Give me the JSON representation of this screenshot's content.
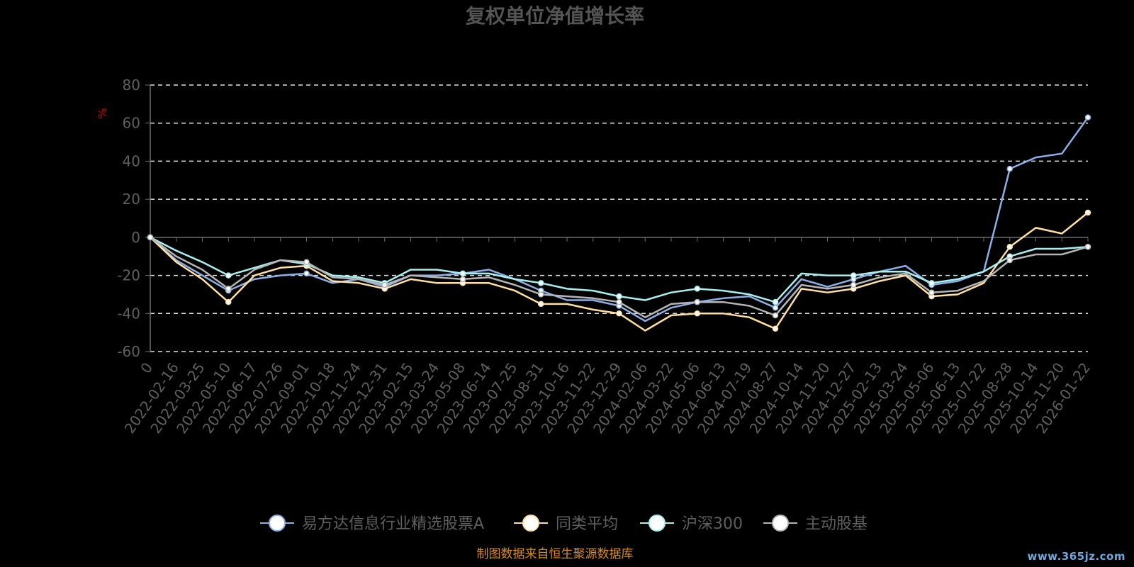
{
  "watermark": "www.365jz.com",
  "chart_data": {
    "type": "line",
    "title": "复权单位净值增长率",
    "ylabel": "%",
    "ylim": [
      -60,
      80
    ],
    "yticks": [
      80,
      60,
      40,
      20,
      0,
      -20,
      -40,
      -60
    ],
    "grid": true,
    "legend_position": "bottom",
    "source_note": "制图数据来自恒生聚源数据库",
    "x": [
      "0",
      "2022-02-16",
      "2022-03-25",
      "2022-05-10",
      "2022-06-17",
      "2022-07-26",
      "2022-09-01",
      "2022-10-18",
      "2022-11-24",
      "2022-12-31",
      "2023-02-15",
      "2023-03-24",
      "2023-05-08",
      "2023-06-14",
      "2023-07-25",
      "2023-08-31",
      "2023-10-16",
      "2023-11-22",
      "2023-12-29",
      "2024-02-06",
      "2024-03-22",
      "2024-05-06",
      "2024-06-13",
      "2024-07-19",
      "2024-08-27",
      "2024-10-14",
      "2024-11-20",
      "2024-12-27",
      "2025-02-13",
      "2025-03-24",
      "2025-05-06",
      "2025-06-13",
      "2025-07-22",
      "2025-08-28",
      "2025-10-14",
      "2025-11-20",
      "2026-01-22"
    ],
    "series": [
      {
        "name": "易方达信息行业精选股票A",
        "color": "#8cb0e6",
        "values": [
          0,
          -12,
          -20,
          -28,
          -22,
          -20,
          -19,
          -24,
          -22,
          -26,
          -20,
          -20,
          -19,
          -17,
          -22,
          -28,
          -33,
          -33,
          -36,
          -44,
          -37,
          -34,
          -32,
          -31,
          -37,
          -22,
          -26,
          -22,
          -18,
          -15,
          -25,
          -23,
          -18,
          36,
          42,
          44,
          63
        ]
      },
      {
        "name": "同类平均",
        "color": "#ffe0a0",
        "values": [
          0,
          -13,
          -22,
          -34,
          -20,
          -16,
          -15,
          -23,
          -24,
          -27,
          -22,
          -24,
          -24,
          -24,
          -28,
          -35,
          -35,
          -38,
          -40,
          -49,
          -41,
          -40,
          -40,
          -42,
          -48,
          -27,
          -29,
          -27,
          -23,
          -20,
          -31,
          -30,
          -24,
          -5,
          5,
          2,
          13
        ]
      },
      {
        "name": "沪深300",
        "color": "#a8f0f0",
        "values": [
          0,
          -7,
          -13,
          -20,
          -16,
          -12,
          -14,
          -20,
          -21,
          -24,
          -17,
          -17,
          -19,
          -19,
          -22,
          -24,
          -27,
          -28,
          -31,
          -33,
          -29,
          -27,
          -28,
          -30,
          -34,
          -19,
          -20,
          -20,
          -18,
          -18,
          -24,
          -22,
          -18,
          -10,
          -6,
          -6,
          -5
        ]
      },
      {
        "name": "主动股基",
        "color": "#b5b5b5",
        "values": [
          0,
          -10,
          -17,
          -27,
          -17,
          -12,
          -13,
          -21,
          -22,
          -25,
          -20,
          -21,
          -22,
          -21,
          -25,
          -30,
          -31,
          -32,
          -34,
          -42,
          -35,
          -34,
          -34,
          -36,
          -41,
          -25,
          -27,
          -25,
          -21,
          -19,
          -29,
          -28,
          -23,
          -12,
          -9,
          -9,
          -5
        ]
      }
    ]
  }
}
